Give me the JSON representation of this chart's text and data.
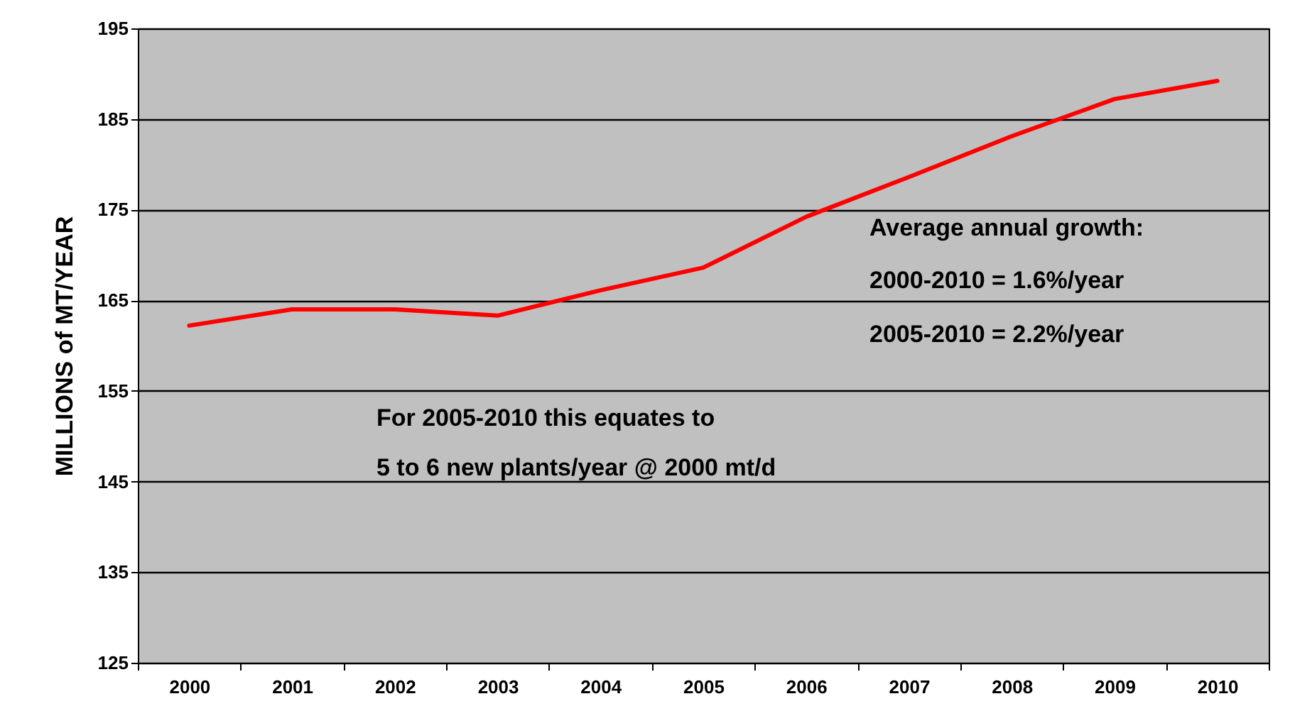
{
  "chart_data": {
    "type": "line",
    "ylabel": "MILLIONS of MT/YEAR",
    "categories": [
      "2000",
      "2001",
      "2002",
      "2003",
      "2004",
      "2005",
      "2006",
      "2007",
      "2008",
      "2009",
      "2010"
    ],
    "series": [
      {
        "color": "#ff0000",
        "values": [
          162.2,
          164,
          164,
          163.3,
          166.1,
          168.6,
          174.2,
          178.6,
          183.1,
          187.2,
          189.2
        ]
      }
    ],
    "ylim": [
      125,
      195
    ],
    "yticks": [
      125,
      135,
      145,
      155,
      165,
      175,
      185,
      195
    ],
    "grid": "y",
    "annotations": [
      "Average annual growth:",
      "2000-2010 = 1.6%/year",
      "2005-2010 = 2.2%/year",
      "For 2005-2010 this equates to",
      "5 to 6 new plants/year @ 2000 mt/d"
    ]
  }
}
